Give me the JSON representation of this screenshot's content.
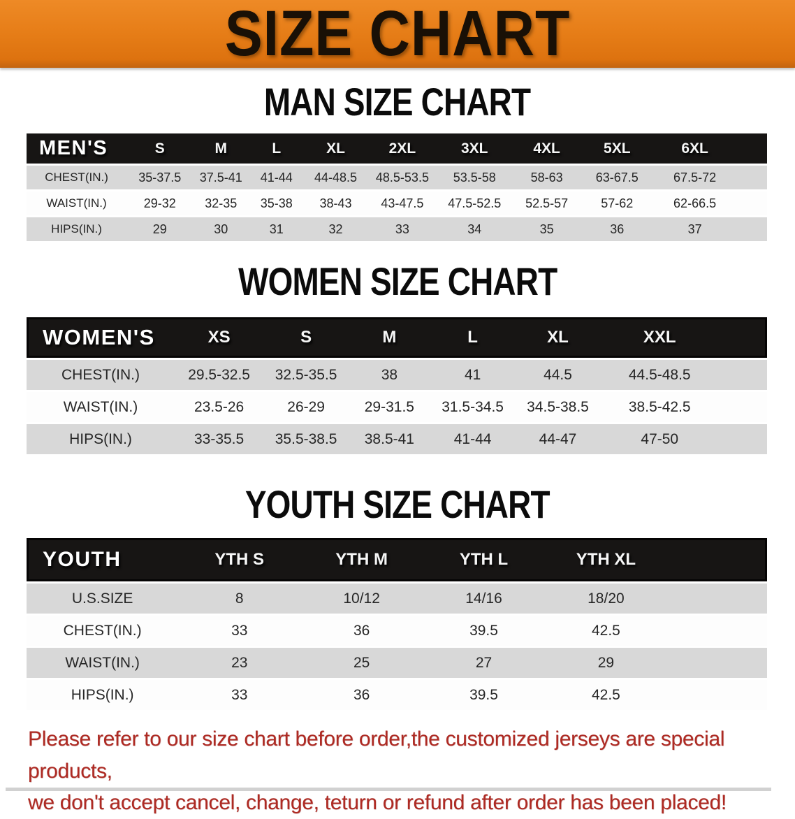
{
  "banner": {
    "title": "SIZE CHART"
  },
  "colors": {
    "banner_bg": "#e67d17",
    "header_bar": "#171514",
    "row_stripe": "#d8d8d8",
    "disclaimer_red": "#ae2a23"
  },
  "sections": [
    {
      "heading": "MAN SIZE CHART",
      "header_label": "MEN'S",
      "columns": [
        "S",
        "M",
        "L",
        "XL",
        "2XL",
        "3XL",
        "4XL",
        "5XL",
        "6XL"
      ],
      "rows": [
        {
          "label": "CHEST(IN.)",
          "values": [
            "35-37.5",
            "37.5-41",
            "41-44",
            "44-48.5",
            "48.5-53.5",
            "53.5-58",
            "58-63",
            "63-67.5",
            "67.5-72"
          ]
        },
        {
          "label": "WAIST(IN.)",
          "values": [
            "29-32",
            "32-35",
            "35-38",
            "38-43",
            "43-47.5",
            "47.5-52.5",
            "52.5-57",
            "57-62",
            "62-66.5"
          ]
        },
        {
          "label": "HIPS(IN.)",
          "values": [
            "29",
            "30",
            "31",
            "32",
            "33",
            "34",
            "35",
            "36",
            "37"
          ]
        }
      ]
    },
    {
      "heading": "WOMEN SIZE CHART",
      "header_label": "WOMEN'S",
      "columns": [
        "XS",
        "S",
        "M",
        "L",
        "XL",
        "XXL"
      ],
      "rows": [
        {
          "label": "CHEST(IN.)",
          "values": [
            "29.5-32.5",
            "32.5-35.5",
            "38",
            "41",
            "44.5",
            "44.5-48.5"
          ]
        },
        {
          "label": "WAIST(IN.)",
          "values": [
            "23.5-26",
            "26-29",
            "29-31.5",
            "31.5-34.5",
            "34.5-38.5",
            "38.5-42.5"
          ]
        },
        {
          "label": "HIPS(IN.)",
          "values": [
            "33-35.5",
            "35.5-38.5",
            "38.5-41",
            "41-44",
            "44-47",
            "47-50"
          ]
        }
      ]
    },
    {
      "heading": "YOUTH SIZE CHART",
      "header_label": "YOUTH",
      "columns": [
        "YTH S",
        "YTH M",
        "YTH L",
        "YTH XL"
      ],
      "rows": [
        {
          "label": "U.S.SIZE",
          "values": [
            "8",
            "10/12",
            "14/16",
            "18/20"
          ]
        },
        {
          "label": "CHEST(IN.)",
          "values": [
            "33",
            "36",
            "39.5",
            "42.5"
          ]
        },
        {
          "label": "WAIST(IN.)",
          "values": [
            "23",
            "25",
            "27",
            "29"
          ]
        },
        {
          "label": "HIPS(IN.)",
          "values": [
            "33",
            "36",
            "39.5",
            "42.5"
          ]
        }
      ]
    }
  ],
  "disclaimer": {
    "line1": "Please refer to our size chart before order,the customized jerseys are special products,",
    "line2": "we don't accept cancel, change, teturn or refund after order has been placed!"
  }
}
